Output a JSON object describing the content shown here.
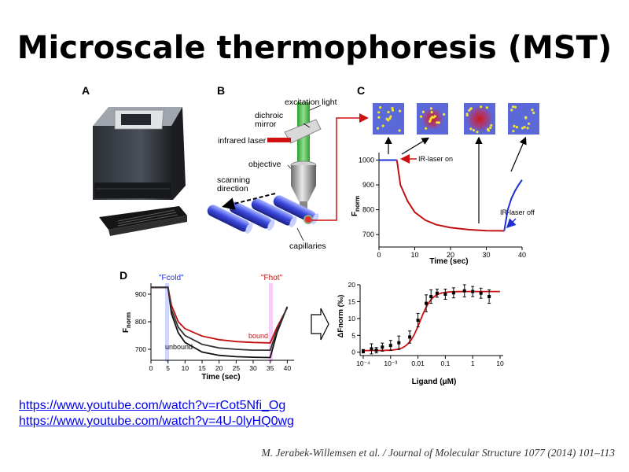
{
  "title": "Microscale thermophoresis (MST)",
  "panels": {
    "a": {
      "label": "A"
    },
    "b": {
      "label": "B",
      "labels": {
        "excitation": "excitation light",
        "dichroic": [
          "dichroic",
          "mirror"
        ],
        "ir_laser": "infrared laser",
        "objective": "objective",
        "scanning": [
          "scanning",
          "direction"
        ],
        "capillaries": "capillaries"
      }
    },
    "c": {
      "label": "C",
      "ylabel_main": "F",
      "ylabel_sub": "norm",
      "xlabel": "Time (sec)",
      "xticks": [
        "0",
        "10",
        "20",
        "30",
        "40"
      ],
      "yticks": [
        "1000",
        "900",
        "800",
        "700"
      ],
      "annot_on": "IR-laser on",
      "annot_off": "IR-laser off"
    },
    "d": {
      "label": "D",
      "ylabel_main": "F",
      "ylabel_sub": "norm",
      "xlabel": "Time (sec)",
      "xticks": [
        "0",
        "5",
        "10",
        "15",
        "20",
        "25",
        "30",
        "35",
        "40"
      ],
      "yticks": [
        "900",
        "800",
        "700"
      ],
      "fcold": "\"Fcold\"",
      "fhot": "\"Fhot\"",
      "bound": "bound",
      "unbound": "unbound",
      "dose_ylabel": "ΔFnorm (‰)",
      "dose_xlabel": "Ligand (μM)",
      "dose_yticks": [
        "20",
        "15",
        "10",
        "5",
        "0"
      ],
      "dose_xticks": [
        "10⁻⁴",
        "10⁻³",
        "0.01",
        "0.1",
        "1",
        "10"
      ]
    }
  },
  "links": [
    "https://www.youtube.com/watch?v=rCot5Nfi_Og",
    "https://www.youtube.com/watch?v=4U-0lyHQ0wg"
  ],
  "citation": "M. Jerabek-Willemsen et al. / Journal of Molecular Structure 1077 (2014) 101–113",
  "chart_data": [
    {
      "type": "line",
      "panel": "C",
      "xlabel": "Time (sec)",
      "ylabel": "Fnorm",
      "xlim": [
        0,
        40
      ],
      "ylim": [
        650,
        1030
      ],
      "series": [
        {
          "x": [
            0,
            1,
            2,
            3,
            4,
            5
          ],
          "y": [
            1000,
            1000,
            1000,
            1000,
            1000,
            1000
          ]
        },
        {
          "x": [
            5,
            6,
            8,
            10,
            13,
            16,
            20,
            25,
            30,
            35
          ],
          "y": [
            1000,
            900,
            835,
            790,
            758,
            740,
            728,
            720,
            716,
            715
          ]
        },
        {
          "x": [
            35,
            36,
            37,
            38,
            39,
            40
          ],
          "y": [
            715,
            800,
            845,
            875,
            900,
            920
          ]
        }
      ]
    },
    {
      "type": "line",
      "panel": "D",
      "xlabel": "Time (sec)",
      "ylabel": "Fnorm",
      "xlim": [
        0,
        42
      ],
      "ylim": [
        660,
        940
      ],
      "series": [
        {
          "name": "bound",
          "x": [
            0,
            5,
            6,
            8,
            10,
            15,
            20,
            25,
            30,
            35,
            37,
            40
          ],
          "y": [
            925,
            925,
            860,
            800,
            775,
            748,
            735,
            728,
            725,
            723,
            780,
            850
          ]
        },
        {
          "name": "unbound",
          "x": [
            0,
            5,
            6,
            8,
            10,
            15,
            20,
            25,
            30,
            35,
            37,
            40
          ],
          "y": [
            925,
            925,
            830,
            760,
            725,
            690,
            678,
            673,
            671,
            670,
            760,
            855
          ]
        },
        {
          "x": [
            0,
            5,
            6,
            8,
            10,
            15,
            20,
            25,
            30,
            35,
            37,
            40
          ],
          "y": [
            925,
            925,
            845,
            780,
            750,
            718,
            705,
            700,
            697,
            697,
            770,
            852
          ]
        }
      ]
    },
    {
      "type": "scatter",
      "panel": "D",
      "xlabel": "Ligand (μM)",
      "ylabel": "ΔFnorm (‰)",
      "xscale": "log",
      "xlim": [
        0.0001,
        10
      ],
      "ylim": [
        -1,
        20
      ],
      "points": [
        {
          "x": 0.0001,
          "y": 0.3,
          "err": 0.5
        },
        {
          "x": 0.0002,
          "y": 1.0,
          "err": 1.5
        },
        {
          "x": 0.0003,
          "y": 0.6,
          "err": 0.8
        },
        {
          "x": 0.0005,
          "y": 1.5,
          "err": 1.2
        },
        {
          "x": 0.001,
          "y": 2.0,
          "err": 1.5
        },
        {
          "x": 0.002,
          "y": 2.8,
          "err": 2.0
        },
        {
          "x": 0.005,
          "y": 4.5,
          "err": 1.8
        },
        {
          "x": 0.01,
          "y": 9.5,
          "err": 2.0
        },
        {
          "x": 0.02,
          "y": 14.5,
          "err": 2.5
        },
        {
          "x": 0.03,
          "y": 16.5,
          "err": 2.0
        },
        {
          "x": 0.05,
          "y": 17.5,
          "err": 1.2
        },
        {
          "x": 0.1,
          "y": 17.2,
          "err": 1.5
        },
        {
          "x": 0.2,
          "y": 17.6,
          "err": 1.5
        },
        {
          "x": 0.5,
          "y": 18.2,
          "err": 1.8
        },
        {
          "x": 1,
          "y": 18.0,
          "err": 1.5
        },
        {
          "x": 2,
          "y": 17.5,
          "err": 1.5
        },
        {
          "x": 4,
          "y": 16.5,
          "err": 2.0
        }
      ],
      "fit": {
        "bottom": 0.5,
        "top": 18,
        "ec50": 0.012,
        "hill": 2
      }
    }
  ]
}
